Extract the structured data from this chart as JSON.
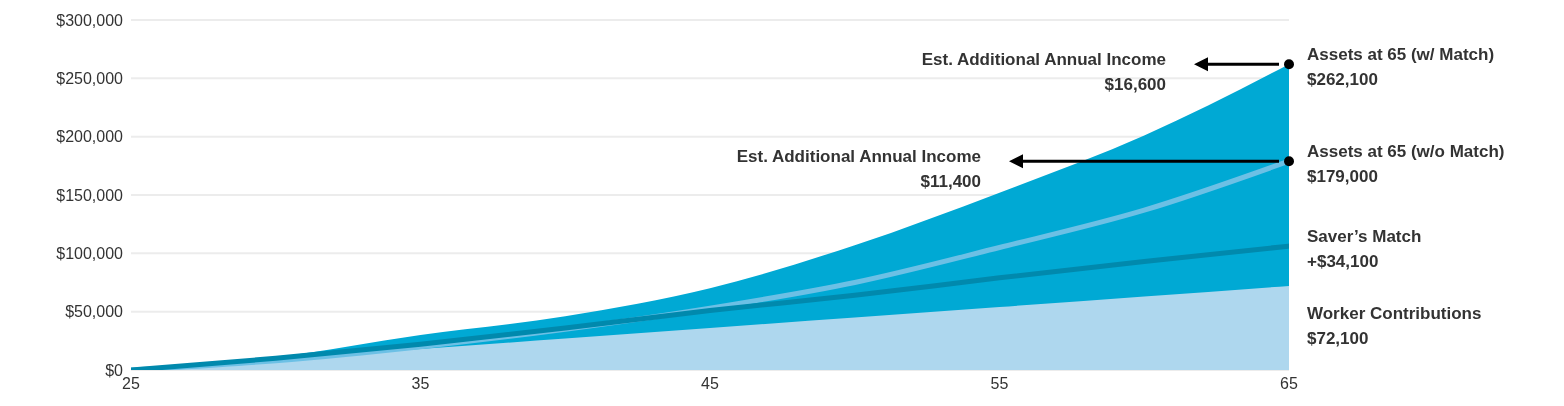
{
  "chart_data": {
    "type": "area",
    "x": [
      25,
      30,
      35,
      40,
      45,
      50,
      55,
      60,
      65
    ],
    "series": [
      {
        "name": "Assets at 65 (w/ Match)",
        "color": "#00a9d4",
        "values": [
          0,
          11000,
          30000,
          46000,
          70000,
          107000,
          152000,
          201000,
          262100
        ],
        "value_labels": [
          null,
          null,
          null,
          null,
          null,
          null,
          null,
          null,
          "$262,100"
        ]
      },
      {
        "name": "Worker Contributions",
        "color": "#aed7ee",
        "values": [
          0,
          9000,
          18000,
          27000,
          36000,
          45000,
          54000,
          63000,
          72100
        ],
        "value_labels": [
          null,
          null,
          null,
          null,
          null,
          null,
          null,
          null,
          "$72,100"
        ]
      },
      {
        "name": "Assets at 65 (w/o Match)",
        "type": "line",
        "color": "#6cc0e5",
        "values": [
          0,
          8000,
          20000,
          35000,
          53000,
          75000,
          105000,
          137000,
          179000
        ],
        "value_labels": [
          null,
          null,
          null,
          null,
          null,
          null,
          null,
          null,
          "$179,000"
        ]
      },
      {
        "type": "line",
        "color": "#0089ad",
        "values": [
          0,
          10000,
          22000,
          36000,
          51000,
          64000,
          79000,
          93000,
          106200
        ]
      }
    ],
    "xlim": [
      25,
      65
    ],
    "xticks": [
      25,
      35,
      45,
      55,
      65
    ],
    "ylim": [
      0,
      300000
    ],
    "yticks": [
      {
        "value": 0,
        "label": "$0"
      },
      {
        "value": 50000,
        "label": "$50,000"
      },
      {
        "value": 100000,
        "label": "$100,000"
      },
      {
        "value": 150000,
        "label": "$150,000"
      },
      {
        "value": 200000,
        "label": "$200,000"
      },
      {
        "value": 250000,
        "label": "$250,000"
      },
      {
        "value": 300000,
        "label": "$300,000"
      }
    ],
    "grid": "y",
    "annotations": [
      "Est. Additional Annual Income\n$16,600",
      "Est. Additional Annual Income\n$11,400",
      {
        "text": "Saver’s Match\n+$34,100",
        "x": 65,
        "y": 106200
      }
    ]
  }
}
